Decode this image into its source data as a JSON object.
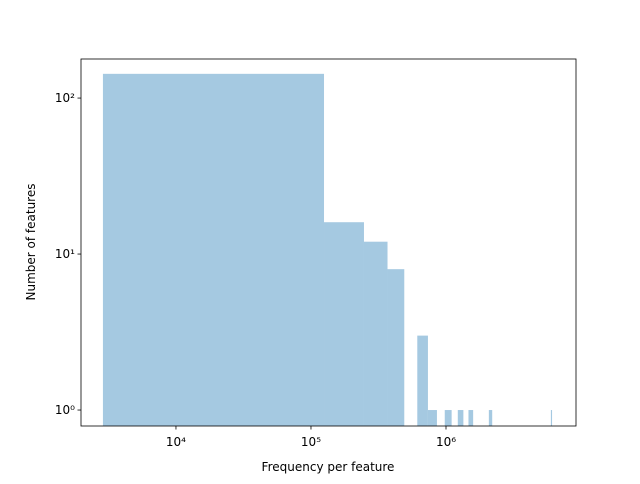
{
  "chart_data": {
    "type": "histogram",
    "xlabel": "Frequency per feature",
    "ylabel": "Number of features",
    "color": "#a5c9e1",
    "xscale": "log",
    "yscale": "log",
    "bins": [
      2878,
      124878,
      246878,
      368878,
      490878,
      612878,
      734878,
      856878,
      978878,
      1100878,
      1222878,
      1344878,
      1466878,
      1588878,
      1710878,
      1832878,
      1954878,
      2076878,
      2198878,
      2320878,
      2442878,
      2564878,
      2686878,
      2808878,
      2930878,
      3052878,
      3174878,
      3296878,
      3418878,
      3540878,
      3662878,
      3784878,
      3906878,
      4028878,
      4150878,
      4272878,
      4394878,
      4516878,
      4638878,
      4760878,
      4882878,
      5004878,
      5126878,
      5248878,
      5370878,
      5492878,
      5614878,
      5736878,
      5858878,
      5980878,
      6102878
    ],
    "values": [
      143,
      16,
      12,
      8,
      0,
      3,
      1,
      0,
      1,
      0,
      1,
      0,
      1,
      0,
      0,
      0,
      0,
      1,
      0,
      0,
      0,
      0,
      0,
      0,
      0,
      0,
      0,
      0,
      0,
      0,
      0,
      0,
      0,
      0,
      0,
      0,
      0,
      0,
      0,
      0,
      0,
      0,
      0,
      0,
      0,
      0,
      0,
      0,
      0,
      1
    ],
    "xlim": [
      1980,
      9180000
    ],
    "ylim": [
      0.79,
      178
    ],
    "xticks": [
      {
        "value": 10000,
        "label": "10⁴"
      },
      {
        "value": 100000,
        "label": "10⁵"
      },
      {
        "value": 1000000,
        "label": "10⁶"
      }
    ],
    "yticks": [
      {
        "value": 1,
        "label": "10⁰"
      },
      {
        "value": 10,
        "label": "10¹"
      },
      {
        "value": 100,
        "label": "10²"
      }
    ]
  }
}
